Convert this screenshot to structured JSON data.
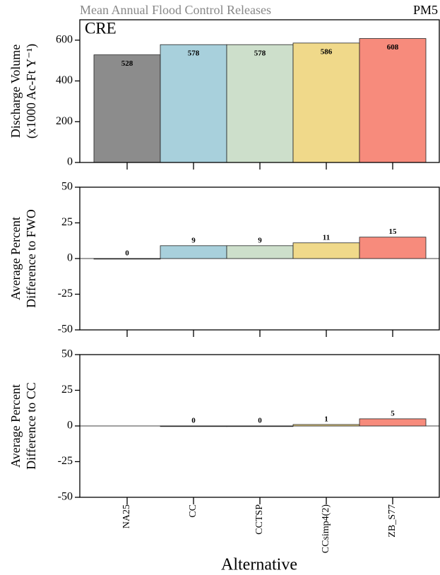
{
  "chart_data": [
    {
      "type": "bar",
      "title": "Mean Annual Flood Control Releases",
      "corner_label": "PM5",
      "panel_label": "CRE",
      "ylabel": [
        "Discharge Volume",
        "(x1000 Ac-Ft Y⁻¹)"
      ],
      "values": [
        528,
        578,
        578,
        586,
        608
      ],
      "label_position": "inside",
      "ylim": [
        0,
        700
      ],
      "yticks": [
        0,
        200,
        400,
        600
      ]
    },
    {
      "type": "bar",
      "ylabel": [
        "Average Percent",
        "Difference to FWO"
      ],
      "values": [
        0,
        9,
        9,
        11,
        15
      ],
      "label_position": "above",
      "zero_line": true,
      "ylim": [
        -50,
        50
      ],
      "yticks": [
        -50,
        -25,
        0,
        25,
        50
      ]
    },
    {
      "type": "bar",
      "ylabel": [
        "Average Percent",
        "Difference to CC"
      ],
      "values": [
        null,
        0,
        0,
        1,
        5
      ],
      "label_position": "above",
      "zero_line": true,
      "ylim": [
        -50,
        50
      ],
      "yticks": [
        -50,
        -25,
        0,
        25,
        50
      ],
      "categories": [
        "NA25",
        "CC",
        "CCTSP",
        "CCsimp4(2)",
        "ZB_S77"
      ],
      "colors": [
        "#8c8c8c",
        "#a8d0dc",
        "#cddfcb",
        "#f0d98a",
        "#f78b7c"
      ],
      "xlabel": "Alternative"
    }
  ]
}
